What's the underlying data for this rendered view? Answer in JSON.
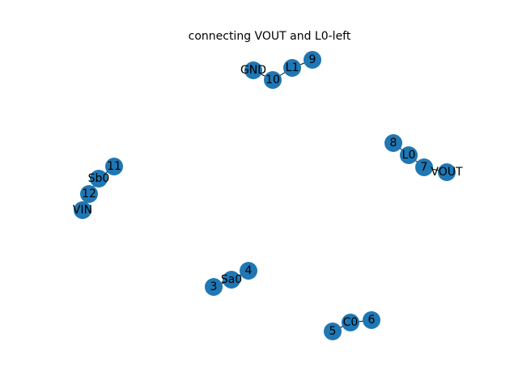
{
  "title": "connecting VOUT and L0-left",
  "node_color": "#1f77b4",
  "label_color": "#000000",
  "nodes": [
    {
      "id": "GND",
      "label": "GND"
    },
    {
      "id": "10",
      "label": "10"
    },
    {
      "id": "L1",
      "label": "L1"
    },
    {
      "id": "9",
      "label": "9"
    },
    {
      "id": "8",
      "label": "8"
    },
    {
      "id": "L0",
      "label": "L0"
    },
    {
      "id": "7",
      "label": "7"
    },
    {
      "id": "VOUT",
      "label": "VOUT"
    },
    {
      "id": "11",
      "label": "11"
    },
    {
      "id": "Sb0",
      "label": "Sb0"
    },
    {
      "id": "12",
      "label": "12"
    },
    {
      "id": "VIN",
      "label": "VIN"
    },
    {
      "id": "4",
      "label": "4"
    },
    {
      "id": "Sa0",
      "label": "Sa0"
    },
    {
      "id": "3",
      "label": "3"
    },
    {
      "id": "6",
      "label": "6"
    },
    {
      "id": "C0",
      "label": "C0"
    },
    {
      "id": "5",
      "label": "5"
    }
  ],
  "edges": [
    [
      "GND",
      "10"
    ],
    [
      "10",
      "L1"
    ],
    [
      "L1",
      "9"
    ],
    [
      "8",
      "L0"
    ],
    [
      "L0",
      "7"
    ],
    [
      "7",
      "VOUT"
    ],
    [
      "11",
      "Sb0"
    ],
    [
      "Sb0",
      "12"
    ],
    [
      "12",
      "VIN"
    ],
    [
      "4",
      "Sa0"
    ],
    [
      "Sa0",
      "3"
    ],
    [
      "6",
      "C0"
    ],
    [
      "C0",
      "5"
    ]
  ]
}
